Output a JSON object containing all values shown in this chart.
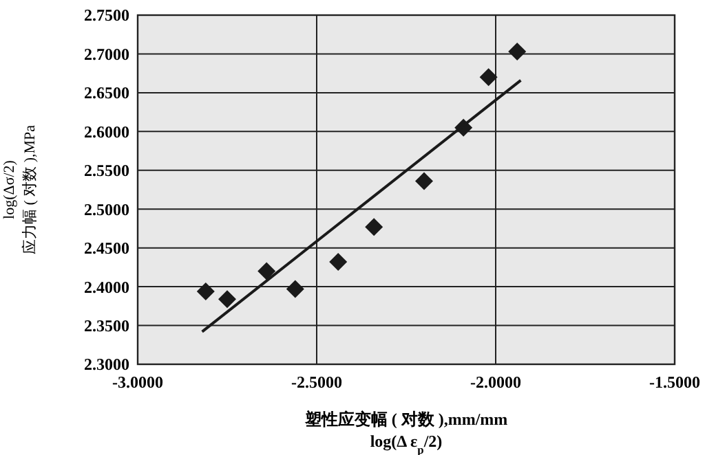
{
  "chart_data": {
    "type": "scatter",
    "xlabel": "塑性应变幅 ( 对数 ),mm/mm\nlog(Δ ε$_{p}$/2)",
    "ylabel": "log(Δσ/2)\n应力幅 ( 对数 ),MPa",
    "xlim": [
      -3.0,
      -1.5
    ],
    "xticks": [
      {
        "value": -3.0,
        "label": "-3.0000"
      },
      {
        "value": -2.5,
        "label": "-2.5000"
      },
      {
        "value": -2.0,
        "label": "-2.0000"
      },
      {
        "value": -1.5,
        "label": "-1.5000"
      }
    ],
    "ylim": [
      2.3,
      2.75
    ],
    "yticks": [
      {
        "value": 2.3,
        "label": "2.3000"
      },
      {
        "value": 2.35,
        "label": "2.3500"
      },
      {
        "value": 2.4,
        "label": "2.4000"
      },
      {
        "value": 2.45,
        "label": "2.4500"
      },
      {
        "value": 2.5,
        "label": "2.5000"
      },
      {
        "value": 2.55,
        "label": "2.5500"
      },
      {
        "value": 2.6,
        "label": "2.6000"
      },
      {
        "value": 2.65,
        "label": "2.6500"
      },
      {
        "value": 2.7,
        "label": "2.7000"
      },
      {
        "value": 2.75,
        "label": "2.7500"
      }
    ],
    "grid": true,
    "series": [
      {
        "marker": "diamond",
        "color": "#1a1a1a",
        "x": [
          -2.81,
          -2.75,
          -2.64,
          -2.56,
          -2.44,
          -2.34,
          -2.2,
          -2.09,
          -2.02,
          -1.94
        ],
        "values": [
          2.394,
          2.384,
          2.42,
          2.397,
          2.432,
          2.477,
          2.536,
          2.605,
          2.67,
          2.703
        ]
      },
      {
        "type": "line",
        "marker": "none",
        "line_style": "solid",
        "color": "#1a1a1a",
        "x": [
          -2.82,
          -1.93
        ],
        "values": [
          2.342,
          2.666
        ]
      }
    ]
  }
}
